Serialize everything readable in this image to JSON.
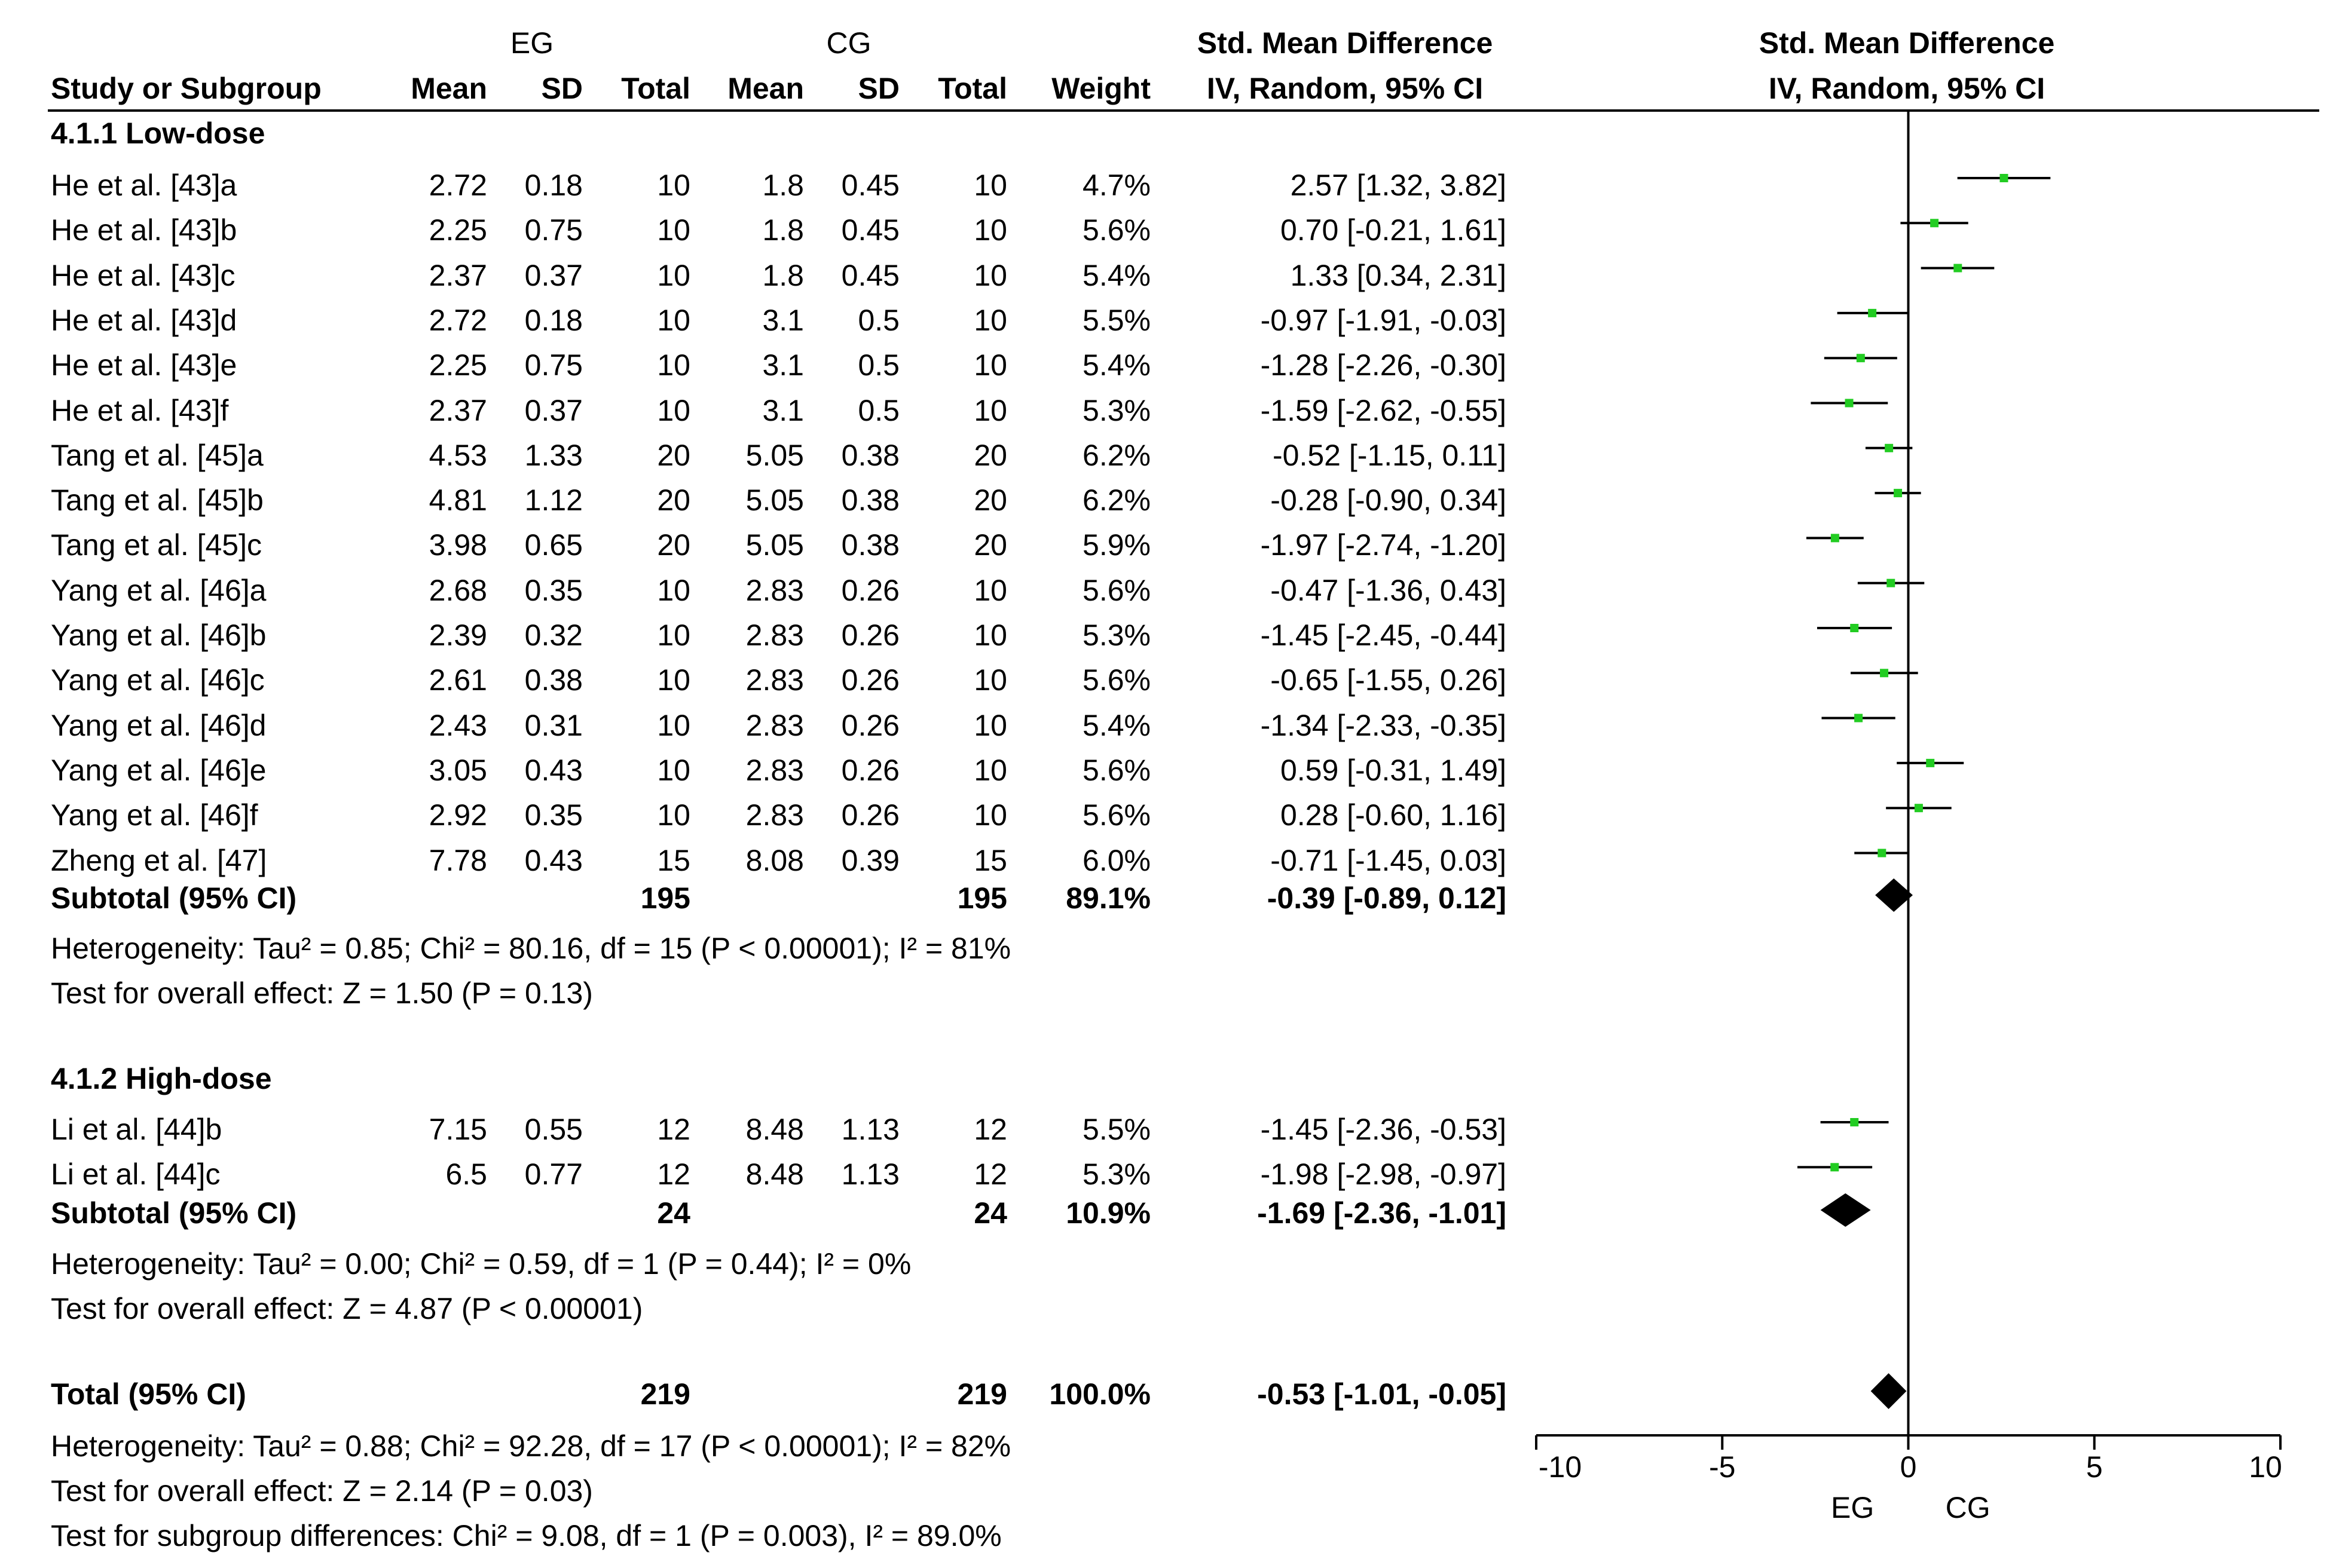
{
  "header": {
    "eg": "EG",
    "cg": "CG",
    "smd_title": "Std. Mean Difference",
    "smd_method": "IV, Random, 95% CI",
    "study": "Study or Subgroup",
    "mean": "Mean",
    "sd": "SD",
    "total": "Total",
    "weight": "Weight"
  },
  "groups": [
    {
      "title": "4.1.1 Low-dose",
      "rows": [
        {
          "study": "He et al. [43]a",
          "eg_mean": "2.72",
          "eg_sd": "0.18",
          "eg_total": "10",
          "cg_mean": "1.8",
          "cg_sd": "0.45",
          "cg_total": "10",
          "weight": "4.7%",
          "ci": "2.57 [1.32, 3.82]"
        },
        {
          "study": "He et al. [43]b",
          "eg_mean": "2.25",
          "eg_sd": "0.75",
          "eg_total": "10",
          "cg_mean": "1.8",
          "cg_sd": "0.45",
          "cg_total": "10",
          "weight": "5.6%",
          "ci": "0.70 [-0.21, 1.61]"
        },
        {
          "study": "He et al. [43]c",
          "eg_mean": "2.37",
          "eg_sd": "0.37",
          "eg_total": "10",
          "cg_mean": "1.8",
          "cg_sd": "0.45",
          "cg_total": "10",
          "weight": "5.4%",
          "ci": "1.33 [0.34, 2.31]"
        },
        {
          "study": "He et al. [43]d",
          "eg_mean": "2.72",
          "eg_sd": "0.18",
          "eg_total": "10",
          "cg_mean": "3.1",
          "cg_sd": "0.5",
          "cg_total": "10",
          "weight": "5.5%",
          "ci": "-0.97 [-1.91, -0.03]"
        },
        {
          "study": "He et al. [43]e",
          "eg_mean": "2.25",
          "eg_sd": "0.75",
          "eg_total": "10",
          "cg_mean": "3.1",
          "cg_sd": "0.5",
          "cg_total": "10",
          "weight": "5.4%",
          "ci": "-1.28 [-2.26, -0.30]"
        },
        {
          "study": "He et al. [43]f",
          "eg_mean": "2.37",
          "eg_sd": "0.37",
          "eg_total": "10",
          "cg_mean": "3.1",
          "cg_sd": "0.5",
          "cg_total": "10",
          "weight": "5.3%",
          "ci": "-1.59 [-2.62, -0.55]"
        },
        {
          "study": "Tang et al. [45]a",
          "eg_mean": "4.53",
          "eg_sd": "1.33",
          "eg_total": "20",
          "cg_mean": "5.05",
          "cg_sd": "0.38",
          "cg_total": "20",
          "weight": "6.2%",
          "ci": "-0.52 [-1.15, 0.11]"
        },
        {
          "study": "Tang et al. [45]b",
          "eg_mean": "4.81",
          "eg_sd": "1.12",
          "eg_total": "20",
          "cg_mean": "5.05",
          "cg_sd": "0.38",
          "cg_total": "20",
          "weight": "6.2%",
          "ci": "-0.28 [-0.90, 0.34]"
        },
        {
          "study": "Tang et al. [45]c",
          "eg_mean": "3.98",
          "eg_sd": "0.65",
          "eg_total": "20",
          "cg_mean": "5.05",
          "cg_sd": "0.38",
          "cg_total": "20",
          "weight": "5.9%",
          "ci": "-1.97 [-2.74, -1.20]"
        },
        {
          "study": "Yang et al. [46]a",
          "eg_mean": "2.68",
          "eg_sd": "0.35",
          "eg_total": "10",
          "cg_mean": "2.83",
          "cg_sd": "0.26",
          "cg_total": "10",
          "weight": "5.6%",
          "ci": "-0.47 [-1.36, 0.43]"
        },
        {
          "study": "Yang et al. [46]b",
          "eg_mean": "2.39",
          "eg_sd": "0.32",
          "eg_total": "10",
          "cg_mean": "2.83",
          "cg_sd": "0.26",
          "cg_total": "10",
          "weight": "5.3%",
          "ci": "-1.45 [-2.45, -0.44]"
        },
        {
          "study": "Yang et al. [46]c",
          "eg_mean": "2.61",
          "eg_sd": "0.38",
          "eg_total": "10",
          "cg_mean": "2.83",
          "cg_sd": "0.26",
          "cg_total": "10",
          "weight": "5.6%",
          "ci": "-0.65 [-1.55, 0.26]"
        },
        {
          "study": "Yang et al. [46]d",
          "eg_mean": "2.43",
          "eg_sd": "0.31",
          "eg_total": "10",
          "cg_mean": "2.83",
          "cg_sd": "0.26",
          "cg_total": "10",
          "weight": "5.4%",
          "ci": "-1.34 [-2.33, -0.35]"
        },
        {
          "study": "Yang et al. [46]e",
          "eg_mean": "3.05",
          "eg_sd": "0.43",
          "eg_total": "10",
          "cg_mean": "2.83",
          "cg_sd": "0.26",
          "cg_total": "10",
          "weight": "5.6%",
          "ci": "0.59 [-0.31, 1.49]"
        },
        {
          "study": "Yang et al. [46]f",
          "eg_mean": "2.92",
          "eg_sd": "0.35",
          "eg_total": "10",
          "cg_mean": "2.83",
          "cg_sd": "0.26",
          "cg_total": "10",
          "weight": "5.6%",
          "ci": "0.28 [-0.60, 1.16]"
        },
        {
          "study": "Zheng et al. [47]",
          "eg_mean": "7.78",
          "eg_sd": "0.43",
          "eg_total": "15",
          "cg_mean": "8.08",
          "cg_sd": "0.39",
          "cg_total": "15",
          "weight": "6.0%",
          "ci": "-0.71 [-1.45, 0.03]"
        }
      ],
      "subtotal": {
        "label": "Subtotal (95% CI)",
        "eg_total": "195",
        "cg_total": "195",
        "weight": "89.1%",
        "ci": "-0.39 [-0.89, 0.12]"
      },
      "heterogeneity": "Heterogeneity: Tau² = 0.85; Chi² = 80.16, df = 15 (P < 0.00001); I² = 81%",
      "overall": "Test for overall effect: Z = 1.50 (P = 0.13)"
    },
    {
      "title": "4.1.2 High-dose",
      "rows": [
        {
          "study": "Li et al. [44]b",
          "eg_mean": "7.15",
          "eg_sd": "0.55",
          "eg_total": "12",
          "cg_mean": "8.48",
          "cg_sd": "1.13",
          "cg_total": "12",
          "weight": "5.5%",
          "ci": "-1.45 [-2.36, -0.53]"
        },
        {
          "study": "Li et al. [44]c",
          "eg_mean": "6.5",
          "eg_sd": "0.77",
          "eg_total": "12",
          "cg_mean": "8.48",
          "cg_sd": "1.13",
          "cg_total": "12",
          "weight": "5.3%",
          "ci": "-1.98 [-2.98, -0.97]"
        }
      ],
      "subtotal": {
        "label": "Subtotal (95% CI)",
        "eg_total": "24",
        "cg_total": "24",
        "weight": "10.9%",
        "ci": "-1.69 [-2.36, -1.01]"
      },
      "heterogeneity": "Heterogeneity: Tau² = 0.00; Chi² = 0.59, df = 1 (P = 0.44); I² = 0%",
      "overall": "Test for overall effect: Z = 4.87 (P < 0.00001)"
    }
  ],
  "total": {
    "label": "Total (95% CI)",
    "eg_total": "219",
    "cg_total": "219",
    "weight": "100.0%",
    "ci": "-0.53 [-1.01, -0.05]"
  },
  "footer": {
    "heterogeneity": "Heterogeneity: Tau² = 0.88; Chi² = 92.28, df = 17 (P < 0.00001); I² = 82%",
    "overall": "Test for overall effect: Z = 2.14 (P = 0.03)",
    "subgroup": "Test for subgroup differences: Chi² = 9.08, df = 1 (P = 0.003), I² = 89.0%"
  },
  "colors": {
    "marker": "#22cc22",
    "line": "#000000",
    "diamond": "#000000"
  },
  "chart_data": {
    "type": "forest",
    "title": "Std. Mean Difference",
    "subtitle": "IV, Random, 95% CI",
    "xlim": [
      -10,
      10
    ],
    "ticks": [
      "-10",
      "-5",
      "0",
      "5",
      "10"
    ],
    "tick_values": [
      -10,
      -5,
      0,
      5,
      10
    ],
    "left_label": "EG",
    "right_label": "CG",
    "studies": [
      {
        "name": "He et al. [43]a",
        "est": 2.57,
        "lo": 1.32,
        "hi": 3.82
      },
      {
        "name": "He et al. [43]b",
        "est": 0.7,
        "lo": -0.21,
        "hi": 1.61
      },
      {
        "name": "He et al. [43]c",
        "est": 1.33,
        "lo": 0.34,
        "hi": 2.31
      },
      {
        "name": "He et al. [43]d",
        "est": -0.97,
        "lo": -1.91,
        "hi": -0.03
      },
      {
        "name": "He et al. [43]e",
        "est": -1.28,
        "lo": -2.26,
        "hi": -0.3
      },
      {
        "name": "He et al. [43]f",
        "est": -1.59,
        "lo": -2.62,
        "hi": -0.55
      },
      {
        "name": "Tang et al. [45]a",
        "est": -0.52,
        "lo": -1.15,
        "hi": 0.11
      },
      {
        "name": "Tang et al. [45]b",
        "est": -0.28,
        "lo": -0.9,
        "hi": 0.34
      },
      {
        "name": "Tang et al. [45]c",
        "est": -1.97,
        "lo": -2.74,
        "hi": -1.2
      },
      {
        "name": "Yang et al. [46]a",
        "est": -0.47,
        "lo": -1.36,
        "hi": 0.43
      },
      {
        "name": "Yang et al. [46]b",
        "est": -1.45,
        "lo": -2.45,
        "hi": -0.44
      },
      {
        "name": "Yang et al. [46]c",
        "est": -0.65,
        "lo": -1.55,
        "hi": 0.26
      },
      {
        "name": "Yang et al. [46]d",
        "est": -1.34,
        "lo": -2.33,
        "hi": -0.35
      },
      {
        "name": "Yang et al. [46]e",
        "est": 0.59,
        "lo": -0.31,
        "hi": 1.49
      },
      {
        "name": "Yang et al. [46]f",
        "est": 0.28,
        "lo": -0.6,
        "hi": 1.16
      },
      {
        "name": "Zheng et al. [47]",
        "est": -0.71,
        "lo": -1.45,
        "hi": 0.03
      },
      {
        "name": "Li et al. [44]b",
        "est": -1.45,
        "lo": -2.36,
        "hi": -0.53
      },
      {
        "name": "Li et al. [44]c",
        "est": -1.98,
        "lo": -2.98,
        "hi": -0.97
      }
    ],
    "summaries": [
      {
        "name": "Subtotal Low-dose",
        "est": -0.39,
        "lo": -0.89,
        "hi": 0.12
      },
      {
        "name": "Subtotal High-dose",
        "est": -1.69,
        "lo": -2.36,
        "hi": -1.01
      },
      {
        "name": "Total",
        "est": -0.53,
        "lo": -1.01,
        "hi": -0.05
      }
    ]
  }
}
